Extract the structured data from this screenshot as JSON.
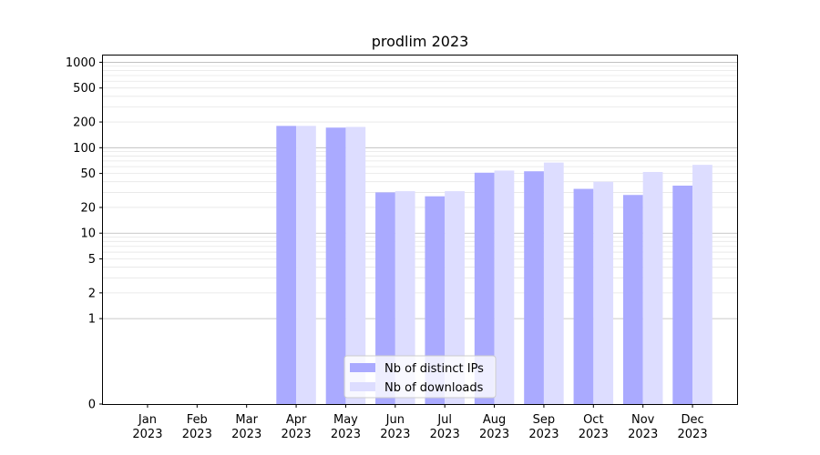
{
  "chart_data": {
    "type": "bar",
    "title": "prodlim 2023",
    "xlabel": "",
    "ylabel": "",
    "yscale": "symlog",
    "ylim": [
      0,
      1200
    ],
    "categories": [
      "Jan\n2023",
      "Feb\n2023",
      "Mar\n2023",
      "Apr\n2023",
      "May\n2023",
      "Jun\n2023",
      "Jul\n2023",
      "Aug\n2023",
      "Sep\n2023",
      "Oct\n2023",
      "Nov\n2023",
      "Dec\n2023"
    ],
    "series": [
      {
        "name": "Nb of distinct IPs",
        "color": "#aaaaff",
        "values": [
          0,
          0,
          0,
          180,
          172,
          30,
          27,
          51,
          53,
          33,
          28,
          36
        ]
      },
      {
        "name": "Nb of downloads",
        "color": "#ddddff",
        "values": [
          0,
          0,
          0,
          180,
          175,
          31,
          31,
          54,
          67,
          40,
          52,
          63
        ]
      }
    ],
    "yticks": [
      0,
      1,
      2,
      5,
      10,
      20,
      50,
      100,
      200,
      500,
      1000
    ],
    "ytick_labels": [
      "0",
      "1",
      "2",
      "5",
      "10",
      "20",
      "50",
      "100",
      "200",
      "500",
      "1000"
    ],
    "grid": true,
    "legend_position": "bottom-center"
  }
}
